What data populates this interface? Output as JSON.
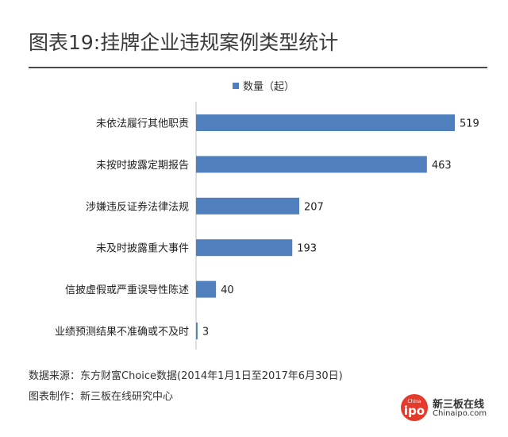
{
  "title": "图表19:挂牌企业违规案例类型统计",
  "footer": {
    "source": "数据来源：东方财富Choice数据(2014年1月1日至2017年6月30日)",
    "producer": "图表制作：新三板在线研究中心"
  },
  "logo": {
    "circle_top": "China",
    "circle_bottom": "ipo",
    "cn": "新三板在线",
    "en": "Chinaipo.com"
  },
  "colors": {
    "bar": "#4f7fbd",
    "rule": "#4a4a4a",
    "logo": "#e63a2c"
  },
  "chart_data": {
    "type": "bar",
    "orientation": "horizontal",
    "categories": [
      "未依法履行其他职责",
      "未按时披露定期报告",
      "涉嫌违反证券法律法规",
      "未及时披露重大事件",
      "信披虚假或严重误导性陈述",
      "业绩预测结果不准确或不及时"
    ],
    "series": [
      {
        "name": "数量（起）",
        "values": [
          519,
          463,
          207,
          193,
          40,
          3
        ]
      }
    ],
    "xlim": [
      0,
      519
    ],
    "legend": "top",
    "grid": false,
    "data_labels": true
  }
}
